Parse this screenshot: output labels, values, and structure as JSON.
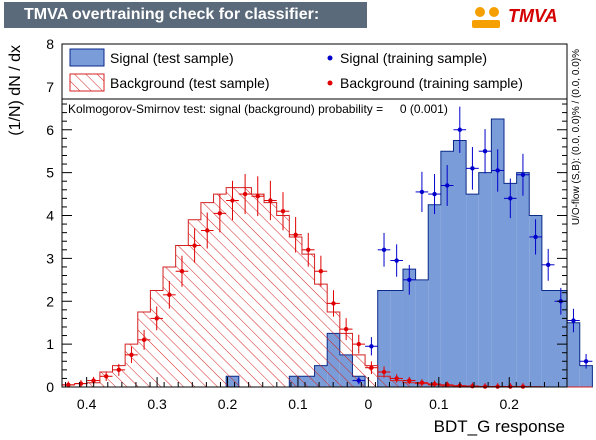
{
  "header": {
    "title": "TMVA overtraining check for classifier: BDT_G",
    "logo_text": "TMVA"
  },
  "colors": {
    "signal_fill": "#7a9cd8",
    "signal_line": "#0a2a8a",
    "signal_points": "#0000cc",
    "background_hatch": "#d42020",
    "background_points": "#e00000",
    "title_bg": "#5a6a7a"
  },
  "chart_data": {
    "type": "histogram",
    "xlabel": "BDT_G response",
    "ylabel": "(1/N) dN / dx",
    "xlim": [
      -0.435,
      0.282
    ],
    "ylim": [
      0,
      8
    ],
    "xticks": [
      -0.4,
      -0.3,
      -0.2,
      -0.1,
      0,
      0.1,
      0.2
    ],
    "xtick_labels": [
      "0.4",
      "0.3",
      "0.2",
      "0.1",
      "0",
      "0.1",
      "0.2"
    ],
    "yticks": [
      0,
      1,
      2,
      3,
      4,
      5,
      6,
      7,
      8
    ],
    "ks_text": "Kolmogorov-Smirnov test: signal (background) probability =     0 (0.001)",
    "overflow_text": "U/O-flow (S,B): (0.0, 0.0)% / (0.0, 0.0)%",
    "legend": [
      {
        "label": "Signal (test sample)",
        "kind": "signal-box"
      },
      {
        "label": "Signal (training sample)",
        "kind": "signal-dot"
      },
      {
        "label": "Background (test sample)",
        "kind": "background-box"
      },
      {
        "label": "Background (training sample)",
        "kind": "background-dot"
      }
    ],
    "bin_start": -0.435,
    "bin_width": 0.01793,
    "series": [
      {
        "name": "Signal (test sample)",
        "type": "hist",
        "values": [
          0,
          0,
          0,
          0,
          0,
          0,
          0,
          0,
          0,
          0,
          0,
          0,
          0,
          0.25,
          0,
          0,
          0,
          0,
          0.25,
          0.25,
          0.5,
          1.25,
          0.75,
          0.25,
          0,
          2.25,
          2.25,
          2.75,
          2.5,
          4.25,
          5.5,
          5.75,
          4.5,
          5.0,
          6.25,
          4.75,
          5.0,
          4.0,
          2.25,
          2.25,
          1.5,
          0.5
        ]
      },
      {
        "name": "Background (test sample)",
        "type": "hist",
        "values": [
          0.05,
          0.08,
          0.1,
          0.35,
          0.5,
          1.0,
          1.75,
          2.25,
          2.8,
          3.3,
          3.9,
          4.3,
          4.5,
          4.65,
          4.65,
          4.5,
          4.3,
          4.0,
          3.5,
          3.1,
          2.4,
          1.75,
          1.25,
          0.75,
          0.5,
          0.25,
          0.15,
          0.1,
          0.08,
          0.05,
          0.03,
          0.02,
          0.02,
          0.01,
          0.01,
          0.01,
          0.01,
          0.01,
          0,
          0,
          0,
          0
        ]
      },
      {
        "name": "Signal (training sample)",
        "type": "points",
        "values": [
          0,
          0,
          0,
          0,
          0,
          0,
          0,
          0,
          0,
          0,
          0,
          0,
          0,
          0,
          0,
          0,
          0,
          0,
          0,
          0,
          0,
          0,
          0,
          0.15,
          0.95,
          3.2,
          2.95,
          2.5,
          4.55,
          4.5,
          4.7,
          6.0,
          5.1,
          5.5,
          5.05,
          4.4,
          4.95,
          3.5,
          2.85,
          2.0,
          1.55,
          0.6
        ]
      },
      {
        "name": "Background (training sample)",
        "type": "points",
        "values": [
          0.05,
          0.08,
          0.15,
          0.25,
          0.4,
          0.75,
          1.1,
          1.6,
          2.15,
          2.7,
          3.3,
          3.65,
          4.05,
          4.35,
          4.5,
          4.45,
          4.35,
          4.1,
          3.55,
          3.2,
          2.7,
          1.95,
          1.35,
          1.0,
          0.45,
          0.35,
          0.2,
          0.15,
          0.1,
          0.07,
          0.05,
          0.03,
          0.02,
          0.01,
          0.01,
          0.01,
          0.01,
          0,
          0,
          0,
          0,
          0
        ]
      }
    ]
  }
}
